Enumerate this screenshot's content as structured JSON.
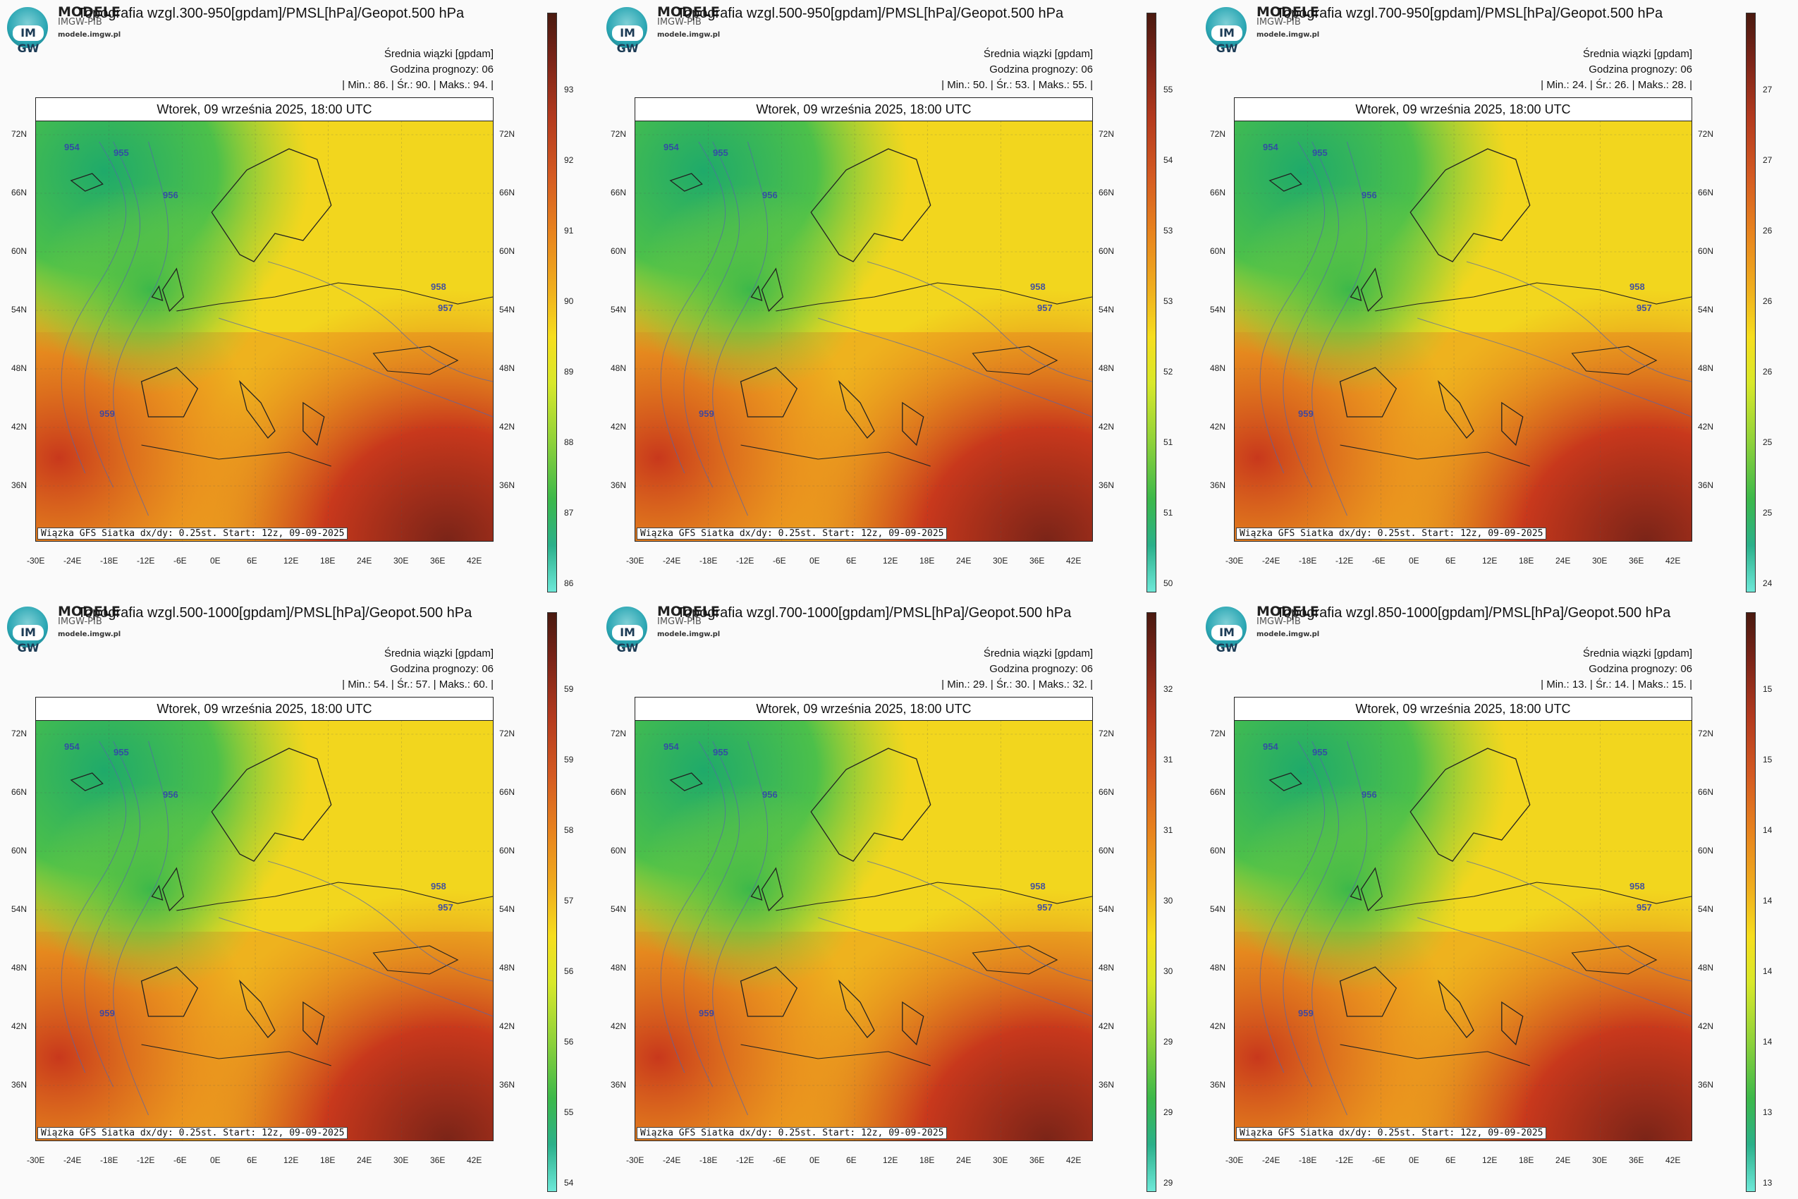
{
  "panels": [
    {
      "id": "p1",
      "brand": "MODELE",
      "brand2": "IMGW-PIB",
      "site": "modele.imgw.pl",
      "logo": "IM GW",
      "title": "Topografia wzgl.300-950[gpdam]/PMSL[hPa]/Geopot.500 hPa",
      "info1": "Średnia wiązki [gpdam]",
      "info2": "Godzina prognozy: 06",
      "info3": "| Min.:  86. | Śr.:  90. | Maks.:  94. |",
      "date": "Wtorek, 09 września 2025, 18:00 UTC",
      "footer": "Wiązka GFS Siatka dx/dy: 0.25st. Start: 12z, 09-09-2025",
      "ticks": [
        "93",
        "92",
        "91",
        "90",
        "89",
        "88",
        "87",
        "86"
      ]
    },
    {
      "id": "p2",
      "brand": "MODELE",
      "brand2": "IMGW-PIB",
      "site": "modele.imgw.pl",
      "logo": "IM GW",
      "title": "Topografia wzgl.500-950[gpdam]/PMSL[hPa]/Geopot.500 hPa",
      "info1": "Średnia wiązki [gpdam]",
      "info2": "Godzina prognozy: 06",
      "info3": "| Min.:  50. | Śr.:  53. | Maks.:  55. |",
      "date": "Wtorek, 09 września 2025, 18:00 UTC",
      "footer": "Wiązka GFS Siatka dx/dy: 0.25st. Start: 12z, 09-09-2025",
      "ticks": [
        "55",
        "54",
        "53",
        "53",
        "52",
        "51",
        "51",
        "50"
      ]
    },
    {
      "id": "p3",
      "brand": "MODELE",
      "brand2": "IMGW-PIB",
      "site": "modele.imgw.pl",
      "logo": "IM GW",
      "title": "Topografia wzgl.700-950[gpdam]/PMSL[hPa]/Geopot.500 hPa",
      "info1": "Średnia wiązki [gpdam]",
      "info2": "Godzina prognozy: 06",
      "info3": "| Min.:  24. | Śr.:  26. | Maks.:  28. |",
      "date": "Wtorek, 09 września 2025, 18:00 UTC",
      "footer": "Wiązka GFS Siatka dx/dy: 0.25st. Start: 12z, 09-09-2025",
      "ticks": [
        "27",
        "27",
        "26",
        "26",
        "26",
        "25",
        "25",
        "24"
      ]
    },
    {
      "id": "p4",
      "brand": "MODELE",
      "brand2": "IMGW-PIB",
      "site": "modele.imgw.pl",
      "logo": "IM GW",
      "title": "Topografia wzgl.500-1000[gpdam]/PMSL[hPa]/Geopot.500 hPa",
      "info1": "Średnia wiązki [gpdam]",
      "info2": "Godzina prognozy: 06",
      "info3": "| Min.:  54. | Śr.:  57. | Maks.:  60. |",
      "date": "Wtorek, 09 września 2025, 18:00 UTC",
      "footer": "Wiązka GFS Siatka dx/dy: 0.25st. Start: 12z, 09-09-2025",
      "ticks": [
        "59",
        "59",
        "58",
        "57",
        "56",
        "56",
        "55",
        "54"
      ]
    },
    {
      "id": "p5",
      "brand": "MODELE",
      "brand2": "IMGW-PIB",
      "site": "modele.imgw.pl",
      "logo": "IM GW",
      "title": "Topografia wzgl.700-1000[gpdam]/PMSL[hPa]/Geopot.500 hPa",
      "info1": "Średnia wiązki [gpdam]",
      "info2": "Godzina prognozy: 06",
      "info3": "| Min.:  29. | Śr.:  30. | Maks.:  32. |",
      "date": "Wtorek, 09 września 2025, 18:00 UTC",
      "footer": "Wiązka GFS Siatka dx/dy: 0.25st. Start: 12z, 09-09-2025",
      "ticks": [
        "32",
        "31",
        "31",
        "30",
        "30",
        "29",
        "29",
        "29"
      ]
    },
    {
      "id": "p6",
      "brand": "MODELE",
      "brand2": "IMGW-PIB",
      "site": "modele.imgw.pl",
      "logo": "IM GW",
      "title": "Topografia wzgl.850-1000[gpdam]/PMSL[hPa]/Geopot.500 hPa",
      "info1": "Średnia wiązki [gpdam]",
      "info2": "Godzina prognozy: 06",
      "info3": "| Min.:  13. | Śr.:  14. | Maks.:  15. |",
      "date": "Wtorek, 09 września 2025, 18:00 UTC",
      "footer": "Wiązka GFS Siatka dx/dy: 0.25st. Start: 12z, 09-09-2025",
      "ticks": [
        "15",
        "15",
        "14",
        "14",
        "14",
        "14",
        "13",
        "13"
      ]
    }
  ],
  "lat_labels": [
    "72N",
    "66N",
    "60N",
    "54N",
    "48N",
    "42N",
    "36N"
  ],
  "lon_labels": [
    "-30E",
    "-24E",
    "-18E",
    "-12E",
    "-6E",
    "0E",
    "6E",
    "12E",
    "18E",
    "24E",
    "30E",
    "36E",
    "42E"
  ],
  "iso_labels": [
    "954",
    "955",
    "956",
    "957",
    "958",
    "959"
  ],
  "colors": {
    "cold": "#2bb08a",
    "cool": "#5cc84a",
    "mid": "#f6e01e",
    "warm": "#e8841e",
    "hot": "#c8381c",
    "extreme": "#7a2418"
  }
}
